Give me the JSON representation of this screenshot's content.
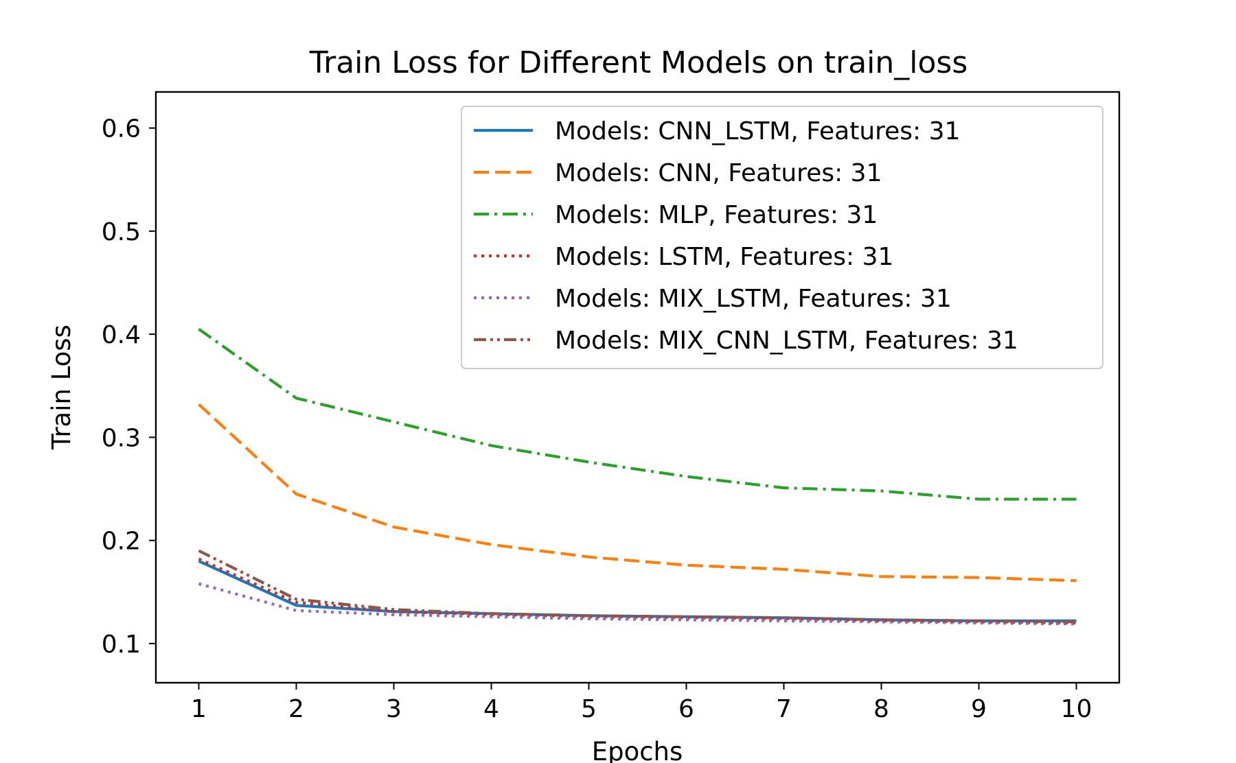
{
  "chart_data": {
    "type": "line",
    "title": "Train Loss for Different Models on train_loss",
    "xlabel": "Epochs",
    "ylabel": "Train Loss",
    "x": [
      1,
      2,
      3,
      4,
      5,
      6,
      7,
      8,
      9,
      10
    ],
    "xticks": [
      "1",
      "2",
      "3",
      "4",
      "5",
      "6",
      "7",
      "8",
      "9",
      "10"
    ],
    "yticks": [
      "0.1",
      "0.2",
      "0.3",
      "0.4",
      "0.5",
      "0.6"
    ],
    "xlim": [
      0.56,
      10.44
    ],
    "ylim": [
      0.062,
      0.635
    ],
    "grid": false,
    "legend_position": "top-right",
    "series": [
      {
        "name": "Models: CNN_LSTM, Features: 31",
        "color": "#1f77b4",
        "linestyle": "solid",
        "values": [
          0.18,
          0.137,
          0.131,
          0.129,
          0.127,
          0.126,
          0.125,
          0.123,
          0.122,
          0.122
        ]
      },
      {
        "name": "Models: CNN, Features: 31",
        "color": "#ff7f0e",
        "linestyle": "dashed",
        "values": [
          0.332,
          0.245,
          0.213,
          0.196,
          0.184,
          0.176,
          0.172,
          0.165,
          0.164,
          0.161
        ]
      },
      {
        "name": "Models: MLP, Features: 31",
        "color": "#2ca02c",
        "linestyle": "dashdot",
        "values": [
          0.405,
          0.338,
          0.315,
          0.292,
          0.276,
          0.262,
          0.251,
          0.248,
          0.24,
          0.24
        ]
      },
      {
        "name": "Models: LSTM, Features: 31",
        "color": "#d62728",
        "linestyle": "dotted",
        "values": [
          0.182,
          0.14,
          0.131,
          0.128,
          0.126,
          0.125,
          0.124,
          0.122,
          0.121,
          0.12
        ]
      },
      {
        "name": "Models: MIX_LSTM, Features: 31",
        "color": "#9467bd",
        "linestyle": "dotted",
        "values": [
          0.158,
          0.132,
          0.128,
          0.126,
          0.124,
          0.123,
          0.122,
          0.121,
          0.12,
          0.119
        ]
      },
      {
        "name": "Models: MIX_CNN_LSTM, Features: 31",
        "color": "#8c564b",
        "linestyle": "dashdotdot",
        "values": [
          0.19,
          0.143,
          0.133,
          0.129,
          0.127,
          0.126,
          0.125,
          0.123,
          0.122,
          0.121
        ]
      }
    ]
  }
}
